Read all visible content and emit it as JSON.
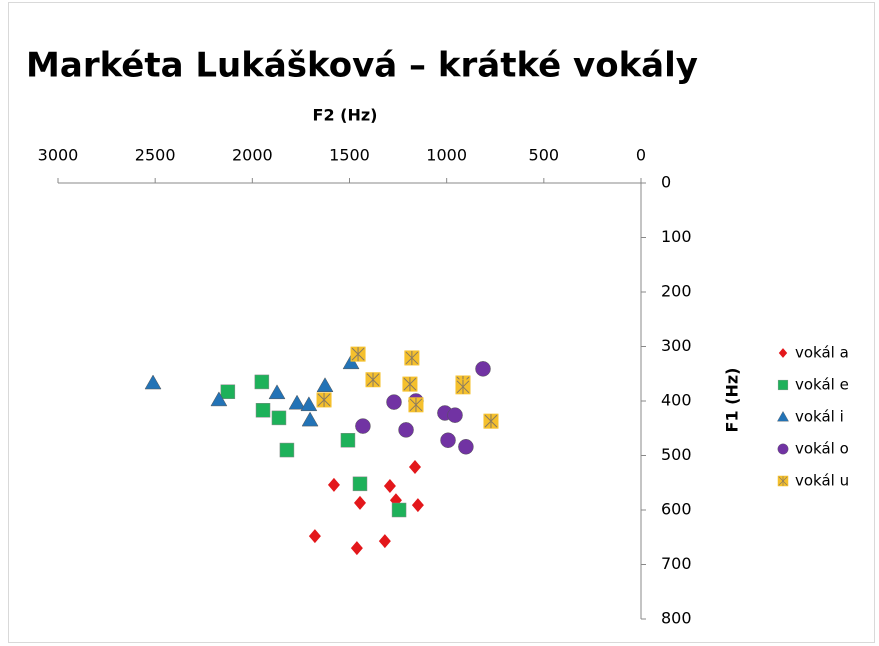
{
  "chart_data": {
    "type": "scatter",
    "title": "Markéta Lukášková – krátké vokály",
    "x_label": "F2 (Hz)",
    "y_label": "F1 (Hz)",
    "xlim": [
      3000,
      0
    ],
    "xticks": [
      3000,
      2500,
      2000,
      1500,
      1000,
      500,
      0
    ],
    "ylim": [
      800,
      0
    ],
    "yticks": [
      0,
      100,
      200,
      300,
      400,
      500,
      600,
      700,
      800
    ],
    "legend": "right",
    "series": [
      {
        "name": "vokál a",
        "color": "#e3171b",
        "marker": "diamond",
        "x": [
          1580,
          1163,
          1446,
          1292,
          1261,
          1148,
          1678,
          1462,
          1318
        ],
        "values": [
          554,
          521,
          587,
          556,
          582,
          591,
          648,
          670,
          657
        ]
      },
      {
        "name": "vokál e",
        "color": "#1eb15a",
        "marker": "square",
        "x": [
          2126,
          1951,
          1945,
          1863,
          1822,
          1508,
          1446,
          1245
        ],
        "values": [
          383,
          365,
          417,
          431,
          490,
          472,
          552,
          600
        ]
      },
      {
        "name": "vokál i",
        "color": "#2373b6",
        "marker": "triangle",
        "x": [
          2511,
          2172,
          1873,
          1770,
          1709,
          1703,
          1626,
          1492
        ],
        "values": [
          367,
          398,
          385,
          404,
          407,
          435,
          372,
          330
        ]
      },
      {
        "name": "vokál o",
        "color": "#7133a3",
        "marker": "circle",
        "x": [
          813,
          1431,
          1271,
          1209,
          1158,
          1009,
          957,
          993,
          901
        ],
        "values": [
          341,
          446,
          402,
          453,
          400,
          422,
          426,
          472,
          484
        ]
      },
      {
        "name": "vokál u",
        "color": "#f5c02c",
        "marker": "square-x",
        "x": [
          1456,
          1379,
          1179,
          1189,
          1158,
          916,
          916,
          772,
          1631
        ],
        "values": [
          314,
          361,
          321,
          369,
          407,
          367,
          374,
          437,
          398
        ]
      }
    ]
  }
}
